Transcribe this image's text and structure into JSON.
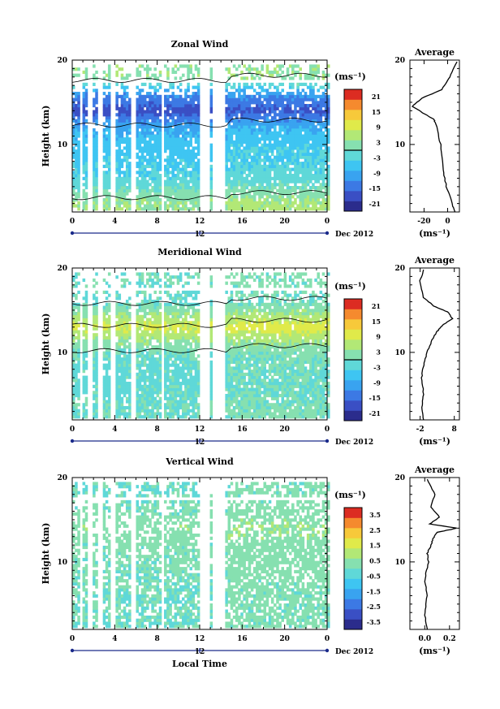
{
  "panels": [
    {
      "id": "zonal",
      "title": "Zonal Wind",
      "ylabel": "Height (km)",
      "yticks": [
        "20",
        "10"
      ],
      "xticks": [
        "0",
        "4",
        "8",
        "12",
        "16",
        "20",
        "0"
      ],
      "day_label": "12",
      "date_label": "Dec 2012",
      "cb_unit": "(ms⁻¹)",
      "cb_ticks": [
        "21",
        "15",
        "9",
        "3",
        "-3",
        "-9",
        "-15",
        "-21"
      ],
      "cb_range": [
        -24,
        24
      ],
      "avg_title": "Average",
      "avg_yticks": [
        "20",
        "10"
      ],
      "avg_xticks": [
        "-20",
        "0"
      ],
      "avg_unit": "(ms⁻¹)"
    },
    {
      "id": "meridional",
      "title": "Meridional Wind",
      "ylabel": "Height (km)",
      "yticks": [
        "20",
        "10"
      ],
      "xticks": [
        "0",
        "4",
        "8",
        "12",
        "16",
        "20",
        "0"
      ],
      "day_label": "12",
      "date_label": "Dec 2012",
      "cb_unit": "(ms⁻¹)",
      "cb_ticks": [
        "21",
        "15",
        "9",
        "3",
        "-3",
        "-9",
        "-15",
        "-21"
      ],
      "cb_range": [
        -24,
        24
      ],
      "avg_title": "Average",
      "avg_yticks": [
        "20",
        "10"
      ],
      "avg_xticks": [
        "-2",
        "8"
      ],
      "avg_unit": "(ms⁻¹)"
    },
    {
      "id": "vertical",
      "title": "Vertical Wind",
      "ylabel": "Height (km)",
      "yticks": [
        "20",
        "10"
      ],
      "xticks": [
        "0",
        "4",
        "8",
        "12",
        "16",
        "20",
        "0"
      ],
      "day_label": "12",
      "date_label": "Dec 2012",
      "xlabel": "Local Time",
      "cb_unit": "(ms⁻¹)",
      "cb_ticks": [
        "3.5",
        "2.5",
        "1.5",
        "0.5",
        "-0.5",
        "-1.5",
        "-2.5",
        "-3.5"
      ],
      "cb_range": [
        -4,
        4
      ],
      "avg_title": "Average",
      "avg_yticks": [
        "20",
        "10"
      ],
      "avg_xticks": [
        "0.0",
        "0.2"
      ],
      "avg_unit": "(ms⁻¹)"
    }
  ],
  "colormap": [
    "#2b2c8c",
    "#3a4fc4",
    "#3c79e4",
    "#39a3f0",
    "#3ec5f2",
    "#5fd8d8",
    "#86e0b0",
    "#b2e876",
    "#e0ea4a",
    "#f7c93a",
    "#f58a2e",
    "#dc2c22"
  ],
  "chart_data": [
    {
      "type": "heatmap",
      "title": "Zonal Wind",
      "xlabel": "",
      "ylabel": "Height (km)",
      "xlim": [
        0,
        24
      ],
      "ylim": [
        2,
        20
      ],
      "x_unit": "hours local time, 12 Dec 2012",
      "value_range": [
        -24,
        24
      ],
      "data_gaps_hours": [
        [
          0.7,
          1.0
        ],
        [
          1.4,
          2.0
        ],
        [
          2.5,
          3.0
        ],
        [
          3.6,
          4.0
        ],
        [
          5.5,
          6.0
        ],
        [
          8.3,
          8.7
        ],
        [
          11.9,
          12.9
        ],
        [
          13.2,
          14.3
        ]
      ],
      "profile_by_height": [
        {
          "height_km": 3,
          "value": 4
        },
        {
          "height_km": 4,
          "value": 2
        },
        {
          "height_km": 6,
          "value": -3
        },
        {
          "height_km": 8,
          "value": -5
        },
        {
          "height_km": 10,
          "value": -6
        },
        {
          "height_km": 12,
          "value": -9
        },
        {
          "height_km": 14,
          "value": -18
        },
        {
          "height_km": 16,
          "value": -12
        },
        {
          "height_km": 17,
          "value": -3
        },
        {
          "height_km": 18,
          "value": 3
        }
      ]
    },
    {
      "type": "line",
      "title": "Average",
      "xlabel": "(ms⁻¹)",
      "ylabel": "",
      "xlim": [
        -32,
        10
      ],
      "ylim": [
        2,
        20
      ],
      "series": [
        {
          "x": [
            6,
            4,
            -1,
            -4,
            -6,
            -10,
            -12,
            -30,
            -22,
            -5,
            2,
            8
          ],
          "y": [
            2,
            3,
            5,
            7,
            10,
            12.5,
            13,
            14.5,
            15.5,
            16.5,
            18,
            19.8
          ]
        }
      ]
    },
    {
      "type": "heatmap",
      "title": "Meridional Wind",
      "xlabel": "",
      "ylabel": "Height (km)",
      "xlim": [
        0,
        24
      ],
      "ylim": [
        2,
        20
      ],
      "x_unit": "hours local time, 12 Dec 2012",
      "value_range": [
        -24,
        24
      ],
      "data_gaps_hours": [
        [
          0.7,
          1.0
        ],
        [
          1.4,
          2.0
        ],
        [
          2.5,
          3.0
        ],
        [
          3.6,
          4.0
        ],
        [
          5.5,
          6.0
        ],
        [
          8.3,
          8.7
        ],
        [
          11.9,
          12.9
        ],
        [
          13.2,
          14.3
        ]
      ],
      "profile_by_height": [
        {
          "height_km": 3,
          "value": 0
        },
        {
          "height_km": 6,
          "value": -1
        },
        {
          "height_km": 8,
          "value": -1
        },
        {
          "height_km": 10,
          "value": 0
        },
        {
          "height_km": 11.5,
          "value": 4
        },
        {
          "height_km": 13,
          "value": 9
        },
        {
          "height_km": 14.5,
          "value": 4
        },
        {
          "height_km": 16,
          "value": -1
        },
        {
          "height_km": 18,
          "value": 0
        }
      ]
    },
    {
      "type": "line",
      "title": "Average",
      "xlabel": "(ms⁻¹)",
      "ylabel": "",
      "xlim": [
        -5,
        9.5
      ],
      "ylim": [
        2,
        20
      ],
      "series": [
        {
          "x": [
            -1,
            -1.5,
            -1,
            -1.5,
            -1,
            0,
            1.5,
            3,
            4.5,
            7.5,
            6,
            2,
            -1,
            -2,
            -1
          ],
          "y": [
            2,
            3.5,
            5,
            7,
            8.5,
            10,
            11.5,
            12.5,
            13.2,
            14,
            14.8,
            15.5,
            16.5,
            18.5,
            19.8
          ]
        }
      ]
    },
    {
      "type": "heatmap",
      "title": "Vertical Wind",
      "xlabel": "Local Time",
      "ylabel": "Height (km)",
      "xlim": [
        0,
        24
      ],
      "ylim": [
        2,
        20
      ],
      "x_unit": "hours local time, 12 Dec 2012",
      "value_range": [
        -4,
        4
      ],
      "data_gaps_hours": [
        [
          0.7,
          1.0
        ],
        [
          1.4,
          2.0
        ],
        [
          2.5,
          3.0
        ],
        [
          3.6,
          4.0
        ],
        [
          5.5,
          6.0
        ],
        [
          8.3,
          8.7
        ],
        [
          11.9,
          12.9
        ],
        [
          13.2,
          14.3
        ]
      ],
      "profile_by_height": [
        {
          "height_km": 3,
          "value": 0
        },
        {
          "height_km": 8,
          "value": 0.05
        },
        {
          "height_km": 12,
          "value": 0.2
        },
        {
          "height_km": 14,
          "value": 0.5
        },
        {
          "height_km": 16,
          "value": 0.1
        },
        {
          "height_km": 18,
          "value": 0
        }
      ]
    },
    {
      "type": "line",
      "title": "Average",
      "xlabel": "(ms⁻¹)",
      "ylabel": "",
      "xlim": [
        -0.12,
        0.28
      ],
      "ylim": [
        2,
        20
      ],
      "series": [
        {
          "x": [
            0.02,
            0.0,
            0.02,
            0.0,
            0.03,
            0.02,
            0.05,
            0.07,
            0.1,
            0.26,
            0.04,
            0.12,
            0.05,
            0.08,
            0.02
          ],
          "y": [
            2,
            4,
            6,
            8,
            10,
            11,
            12,
            12.8,
            13.5,
            14.0,
            14.5,
            15.3,
            16.5,
            18,
            19.8
          ]
        }
      ]
    }
  ]
}
